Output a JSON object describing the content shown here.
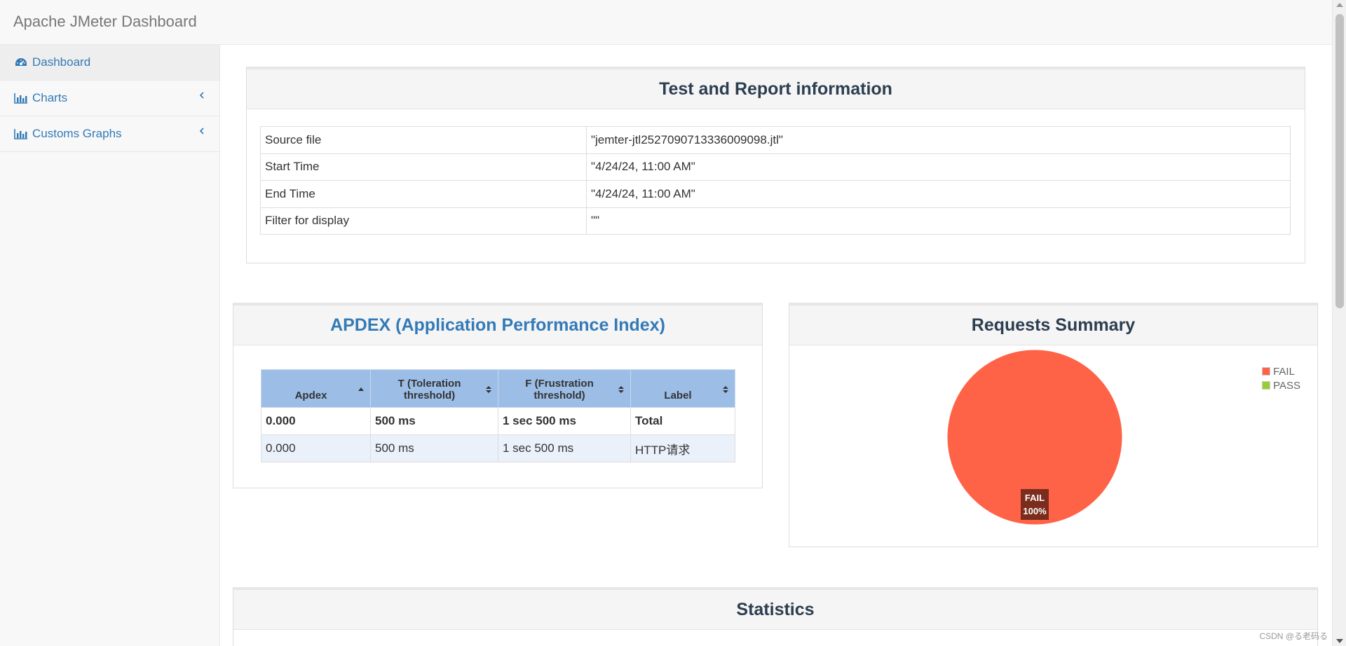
{
  "app": {
    "title": "Apache JMeter Dashboard"
  },
  "sidebar": {
    "items": [
      {
        "label": "Dashboard",
        "icon": "dashboard-icon"
      },
      {
        "label": "Charts",
        "icon": "bar-chart-icon"
      },
      {
        "label": "Customs Graphs",
        "icon": "bar-chart-icon"
      }
    ]
  },
  "info_panel": {
    "title": "Test and Report information",
    "rows": [
      {
        "key": "Source file",
        "value": "\"jemter-jtl2527090713336009098.jtl\""
      },
      {
        "key": "Start Time",
        "value": "\"4/24/24, 11:00 AM\""
      },
      {
        "key": "End Time",
        "value": "\"4/24/24, 11:00 AM\""
      },
      {
        "key": "Filter for display",
        "value": "\"\""
      }
    ]
  },
  "apdex_panel": {
    "title": "APDEX (Application Performance Index)",
    "headers": [
      "Apdex",
      "T (Toleration threshold)",
      "F (Frustration threshold)",
      "Label"
    ],
    "total_row": [
      "0.000",
      "500 ms",
      "1 sec 500 ms",
      "Total"
    ],
    "rows": [
      [
        "0.000",
        "500 ms",
        "1 sec 500 ms",
        "HTTP请求"
      ]
    ]
  },
  "summary_panel": {
    "title": "Requests Summary",
    "chart_data": {
      "type": "pie",
      "title": "Requests Summary",
      "slices": [
        {
          "label": "FAIL",
          "value": 100,
          "color": "#ff6347"
        },
        {
          "label": "PASS",
          "value": 0,
          "color": "#9acd32"
        }
      ],
      "slice_label": {
        "name": "FAIL",
        "percent": "100%"
      },
      "legend": "top-right"
    }
  },
  "statistics_panel": {
    "title": "Statistics"
  },
  "watermark": "CSDN @る老码る"
}
